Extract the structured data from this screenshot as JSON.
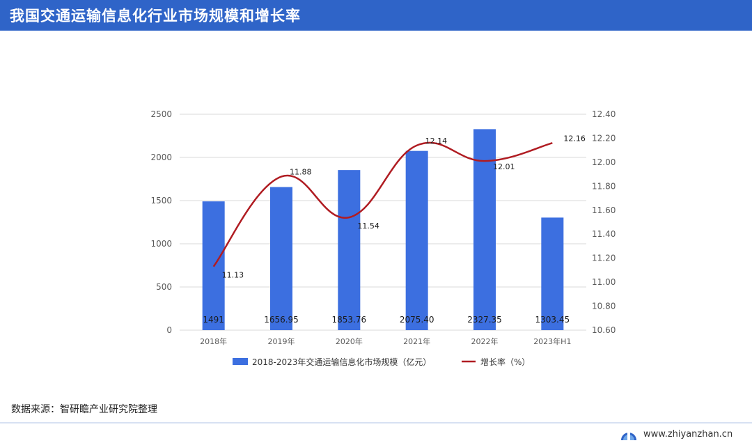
{
  "header": {
    "title": "我国交通运输信息化行业市场规模和增长率"
  },
  "source": {
    "text": "数据来源：智研瞻产业研究院整理"
  },
  "footer": {
    "url": "www.zhiyanzhan.cn",
    "logo_icon": "zhiyanzhan-logo-icon"
  },
  "colors": {
    "header_bg": "#2f64c8",
    "bar": "#3c6fe0",
    "line": "#b01c22"
  },
  "chart_data": {
    "type": "bar",
    "categories": [
      "2018年",
      "2019年",
      "2020年",
      "2021年",
      "2022年",
      "2023年H1"
    ],
    "series": [
      {
        "name": "2018-2023年交通运输信息化市场规模（亿元）",
        "type": "bar",
        "axis": "left",
        "values": [
          1491,
          1656.95,
          1853.76,
          2075.4,
          2327.35,
          1303.45
        ],
        "labels": [
          "1491",
          "1656.95",
          "1853.76",
          "2075.40",
          "2327.35",
          "1303.45"
        ]
      },
      {
        "name": "增长率（%）",
        "type": "line",
        "axis": "right",
        "values": [
          11.13,
          11.88,
          11.54,
          12.14,
          12.01,
          12.16
        ],
        "labels": [
          "11.13",
          "11.88",
          "11.54",
          "12.14",
          "12.01",
          "12.16"
        ]
      }
    ],
    "y_left": {
      "ylim": [
        0,
        2500
      ],
      "ticks": [
        "0",
        "500",
        "1000",
        "1500",
        "2000",
        "2500"
      ]
    },
    "y_right": {
      "ylim": [
        10.6,
        12.4
      ],
      "ticks": [
        "10.60",
        "10.80",
        "11.00",
        "11.20",
        "11.40",
        "11.60",
        "11.80",
        "12.00",
        "12.20",
        "12.40"
      ]
    },
    "grid": true,
    "legend": "bottom"
  }
}
